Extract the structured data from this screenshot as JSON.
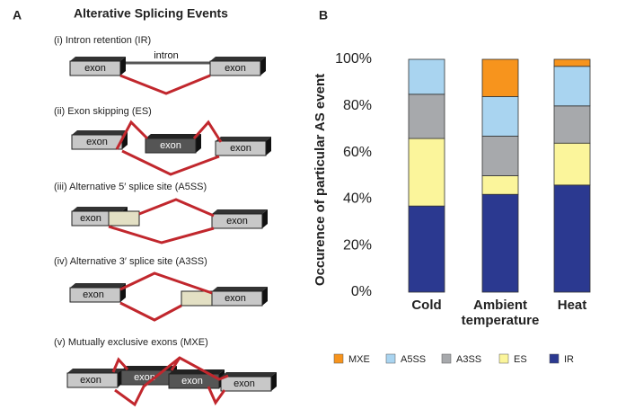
{
  "panel_a": {
    "letter": "A",
    "title": "Alterative Splicing Events",
    "intron_label": "intron",
    "events": [
      {
        "label": "(i) Intron retention (IR)",
        "exons": [
          "exon",
          "exon"
        ]
      },
      {
        "label": "(ii) Exon skipping (ES)",
        "exons": [
          "exon",
          "exon",
          "exon"
        ]
      },
      {
        "label": "(iii) Alternative 5′ splice site (A5SS)",
        "exons": [
          "exon",
          "exon"
        ]
      },
      {
        "label": "(iv) Alternative 3′ splice site (A3SS)",
        "exons": [
          "exon",
          "exon"
        ]
      },
      {
        "label": "(v) Mutually exclusive exons (MXE)",
        "exons": [
          "exon",
          "exon",
          "exon",
          "exon"
        ]
      }
    ]
  },
  "chart_data": {
    "type": "stacked_bar",
    "panel_letter": "B",
    "y_label": "Occurence of particular AS event",
    "categories": [
      "Cold",
      "Ambient temperature",
      "Heat"
    ],
    "series": [
      {
        "name": "MXE",
        "color": "#f7941d",
        "values": [
          0,
          16,
          3
        ]
      },
      {
        "name": "A5SS",
        "color": "#a9d4f0",
        "values": [
          15,
          17,
          17
        ]
      },
      {
        "name": "A3SS",
        "color": "#a7a9ac",
        "values": [
          19,
          17,
          16
        ]
      },
      {
        "name": "ES",
        "color": "#fbf59b",
        "values": [
          29,
          8,
          18
        ]
      },
      {
        "name": "IR",
        "color": "#2b3990",
        "values": [
          37,
          42,
          46
        ]
      }
    ],
    "ylim": [
      0,
      100
    ],
    "yticks": [
      {
        "value": 0,
        "label": "0%"
      },
      {
        "value": 20,
        "label": "20%"
      },
      {
        "value": 40,
        "label": "40%"
      },
      {
        "value": 60,
        "label": "60%"
      },
      {
        "value": 80,
        "label": "80%"
      },
      {
        "value": 100,
        "label": "100%"
      }
    ]
  }
}
